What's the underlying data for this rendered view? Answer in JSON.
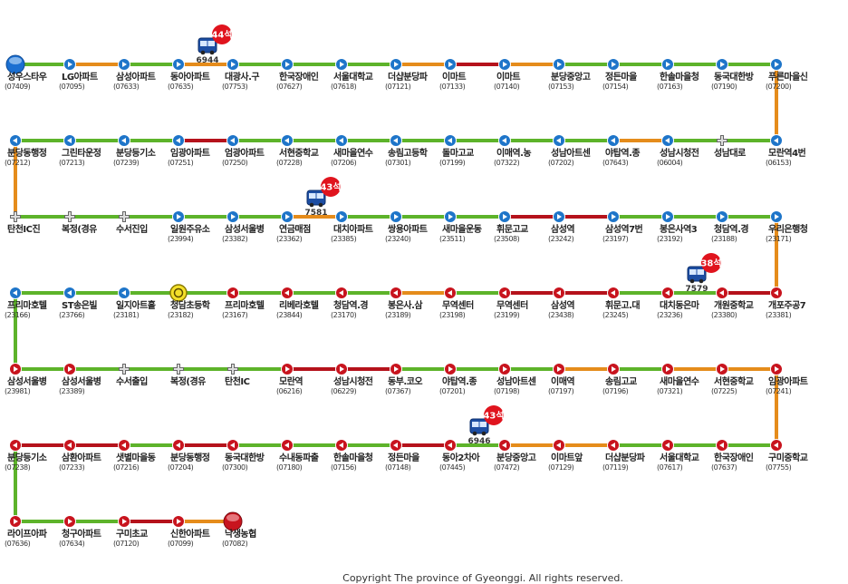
{
  "colors": {
    "green": "#5db32a",
    "orange": "#e58c1b",
    "red": "#b5121b",
    "blue_stop": "#1e75c9",
    "red_stop": "#c8141e",
    "start_stop": "#1b6fd1",
    "end_stop": "#c8141e"
  },
  "rows": [
    {
      "dir": "right",
      "stops": [
        {
          "name": "성우스타우",
          "id": "(07409)",
          "type": "start"
        },
        {
          "name": "LG아파트",
          "id": "(07095)",
          "type": "blue"
        },
        {
          "name": "삼성아파트",
          "id": "(07633)",
          "type": "blue"
        },
        {
          "name": "동아아파트",
          "id": "(07635)",
          "type": "blue"
        },
        {
          "name": "대광사.구",
          "id": "(07753)",
          "type": "blue"
        },
        {
          "name": "한국장애인",
          "id": "(07627)",
          "type": "blue"
        },
        {
          "name": "서울대학교",
          "id": "(07618)",
          "type": "blue"
        },
        {
          "name": "더샵분당파",
          "id": "(07121)",
          "type": "blue"
        },
        {
          "name": "이마트",
          "id": "(07133)",
          "type": "blue"
        },
        {
          "name": "이마트",
          "id": "(07140)",
          "type": "blue"
        },
        {
          "name": "분당중앙고",
          "id": "(07153)",
          "type": "blue"
        },
        {
          "name": "정든마을",
          "id": "(07154)",
          "type": "blue"
        },
        {
          "name": "한솔마을청",
          "id": "(07163)",
          "type": "blue"
        },
        {
          "name": "동국대한방",
          "id": "(07190)",
          "type": "blue"
        },
        {
          "name": "푸른마을신",
          "id": "(07200)",
          "type": "blue"
        }
      ],
      "segs": [
        "green",
        "orange",
        "green",
        "orange",
        "green",
        "green",
        "green",
        "orange",
        "red",
        "orange",
        "green",
        "green",
        "green",
        "green"
      ]
    },
    {
      "dir": "left",
      "stops": [
        {
          "name": "모란역4번",
          "id": "(06153)",
          "type": "blue"
        },
        {
          "name": "성남대로",
          "id": "",
          "type": "gray"
        },
        {
          "name": "성남시청전",
          "id": "(06004)",
          "type": "blue"
        },
        {
          "name": "야탑역.종",
          "id": "(07643)",
          "type": "blue"
        },
        {
          "name": "성남아트센",
          "id": "(07202)",
          "type": "blue"
        },
        {
          "name": "이매역.농",
          "id": "(07322)",
          "type": "blue"
        },
        {
          "name": "돌마고교",
          "id": "(07199)",
          "type": "blue"
        },
        {
          "name": "송림고등학",
          "id": "(07301)",
          "type": "blue"
        },
        {
          "name": "새마을연수",
          "id": "(07206)",
          "type": "blue"
        },
        {
          "name": "서현중학교",
          "id": "(07228)",
          "type": "blue"
        },
        {
          "name": "엄광아파트",
          "id": "(07250)",
          "type": "blue"
        },
        {
          "name": "임광아파트",
          "id": "(07251)",
          "type": "blue"
        },
        {
          "name": "분당등기소",
          "id": "(07239)",
          "type": "blue"
        },
        {
          "name": "그린타운정",
          "id": "(07213)",
          "type": "blue"
        },
        {
          "name": "분당동행정",
          "id": "(07212)",
          "type": "blue"
        }
      ],
      "segs": [
        "green",
        "green",
        "orange",
        "green",
        "green",
        "green",
        "green",
        "green",
        "green",
        "green",
        "red",
        "green",
        "green",
        "green"
      ]
    },
    {
      "dir": "right",
      "stops": [
        {
          "name": "탄천IC진",
          "id": "",
          "type": "gray"
        },
        {
          "name": "복정(경유",
          "id": "",
          "type": "gray"
        },
        {
          "name": "수서진입",
          "id": "",
          "type": "gray"
        },
        {
          "name": "일원주유소",
          "id": "(23994)",
          "type": "blue"
        },
        {
          "name": "삼성서울병",
          "id": "(23382)",
          "type": "blue"
        },
        {
          "name": "연금매점",
          "id": "(23362)",
          "type": "blue"
        },
        {
          "name": "대치아파트",
          "id": "(23385)",
          "type": "blue"
        },
        {
          "name": "쌍용아파트",
          "id": "(23240)",
          "type": "blue"
        },
        {
          "name": "새마을운동",
          "id": "(23511)",
          "type": "blue"
        },
        {
          "name": "휘문고교",
          "id": "(23508)",
          "type": "blue"
        },
        {
          "name": "삼성역",
          "id": "(23242)",
          "type": "blue"
        },
        {
          "name": "삼성역7번",
          "id": "(23197)",
          "type": "blue"
        },
        {
          "name": "봉은사역3",
          "id": "(23192)",
          "type": "blue"
        },
        {
          "name": "청담역.경",
          "id": "(23188)",
          "type": "blue"
        },
        {
          "name": "우리은행청",
          "id": "(23171)",
          "type": "blue"
        }
      ],
      "segs": [
        "green",
        "green",
        "green",
        "green",
        "green",
        "orange",
        "green",
        "green",
        "green",
        "red",
        "red",
        "green",
        "green",
        "green"
      ]
    },
    {
      "dir": "left",
      "stops": [
        {
          "name": "개포주공7",
          "id": "(23381)",
          "type": "red"
        },
        {
          "name": "개원중학교",
          "id": "(23380)",
          "type": "red"
        },
        {
          "name": "대치동은마",
          "id": "(23236)",
          "type": "red"
        },
        {
          "name": "휘문고.대",
          "id": "(23245)",
          "type": "red"
        },
        {
          "name": "삼성역",
          "id": "(23438)",
          "type": "red"
        },
        {
          "name": "무역센터",
          "id": "(23199)",
          "type": "red"
        },
        {
          "name": "무역센터",
          "id": "(23198)",
          "type": "red"
        },
        {
          "name": "봉은사.삼",
          "id": "(23189)",
          "type": "red"
        },
        {
          "name": "청담역.경",
          "id": "(23170)",
          "type": "red"
        },
        {
          "name": "리베라호텔",
          "id": "(23844)",
          "type": "red"
        },
        {
          "name": "프리마호텔",
          "id": "(23167)",
          "type": "red"
        },
        {
          "name": "청담초등학",
          "id": "(23182)",
          "type": "turn"
        },
        {
          "name": "일지아트홀",
          "id": "(23181)",
          "type": "blue"
        },
        {
          "name": "ST송은빌",
          "id": "(23766)",
          "type": "blue"
        },
        {
          "name": "프리마호텔",
          "id": "(23166)",
          "type": "blue"
        }
      ],
      "segs": [
        "red",
        "green",
        "green",
        "red",
        "red",
        "green",
        "orange",
        "green",
        "green",
        "green",
        "green",
        "green",
        "green",
        "green"
      ]
    },
    {
      "dir": "right",
      "stops": [
        {
          "name": "삼성서울병",
          "id": "(23981)",
          "type": "red"
        },
        {
          "name": "삼성서울병",
          "id": "(23389)",
          "type": "red"
        },
        {
          "name": "수서출입",
          "id": "",
          "type": "gray"
        },
        {
          "name": "복정(경유",
          "id": "",
          "type": "gray"
        },
        {
          "name": "탄천IC",
          "id": "",
          "type": "gray"
        },
        {
          "name": "모란역",
          "id": "(06216)",
          "type": "red"
        },
        {
          "name": "성남시청전",
          "id": "(06229)",
          "type": "red"
        },
        {
          "name": "동부.코오",
          "id": "(07367)",
          "type": "red"
        },
        {
          "name": "야탑역.종",
          "id": "(07201)",
          "type": "red"
        },
        {
          "name": "성남아트센",
          "id": "(07198)",
          "type": "red"
        },
        {
          "name": "이매역",
          "id": "(07197)",
          "type": "red"
        },
        {
          "name": "송림고교",
          "id": "(07196)",
          "type": "red"
        },
        {
          "name": "새마을연수",
          "id": "(07321)",
          "type": "red"
        },
        {
          "name": "서현중학교",
          "id": "(07225)",
          "type": "red"
        },
        {
          "name": "임광아파트",
          "id": "(07241)",
          "type": "red"
        }
      ],
      "segs": [
        "green",
        "green",
        "green",
        "green",
        "green",
        "red",
        "red",
        "green",
        "green",
        "green",
        "orange",
        "green",
        "orange",
        "orange"
      ]
    },
    {
      "dir": "left",
      "stops": [
        {
          "name": "구미중학교",
          "id": "(07755)",
          "type": "red"
        },
        {
          "name": "한국장애인",
          "id": "(07637)",
          "type": "red"
        },
        {
          "name": "서울대학교",
          "id": "(07617)",
          "type": "red"
        },
        {
          "name": "더샵분당파",
          "id": "(07119)",
          "type": "red"
        },
        {
          "name": "이마트앞",
          "id": "(07129)",
          "type": "red"
        },
        {
          "name": "분당중앙고",
          "id": "(07472)",
          "type": "red"
        },
        {
          "name": "동아2차아",
          "id": "(07445)",
          "type": "red"
        },
        {
          "name": "정든마을",
          "id": "(07148)",
          "type": "red"
        },
        {
          "name": "한솔마을청",
          "id": "(07156)",
          "type": "red"
        },
        {
          "name": "수내동파출",
          "id": "(07180)",
          "type": "red"
        },
        {
          "name": "동국대한방",
          "id": "(07300)",
          "type": "red"
        },
        {
          "name": "분당동행정",
          "id": "(07204)",
          "type": "red"
        },
        {
          "name": "샛별마을동",
          "id": "(07216)",
          "type": "red"
        },
        {
          "name": "삼환아파트",
          "id": "(07233)",
          "type": "red"
        },
        {
          "name": "분당등기소",
          "id": "(07238)",
          "type": "red"
        }
      ],
      "segs": [
        "green",
        "green",
        "green",
        "orange",
        "orange",
        "green",
        "red",
        "green",
        "green",
        "green",
        "red",
        "green",
        "red",
        "red"
      ]
    },
    {
      "dir": "right",
      "stops": [
        {
          "name": "라이프아파",
          "id": "(07636)",
          "type": "red"
        },
        {
          "name": "청구아파트",
          "id": "(07634)",
          "type": "red"
        },
        {
          "name": "구미초교",
          "id": "(07120)",
          "type": "red"
        },
        {
          "name": "신한아파트",
          "id": "(07099)",
          "type": "red"
        },
        {
          "name": "낙생농협",
          "id": "(07082)",
          "type": "end"
        }
      ],
      "segs": [
        "green",
        "green",
        "red",
        "orange"
      ]
    }
  ],
  "turns": [
    "orange",
    "orange",
    "orange",
    "green",
    "orange",
    "green"
  ],
  "buses": [
    {
      "row": 0,
      "seg": 3,
      "plate": "6944",
      "seats": "44석"
    },
    {
      "row": 2,
      "seg": 5,
      "plate": "7581",
      "seats": "43석"
    },
    {
      "row": 3,
      "seg": 1,
      "plate": "7579",
      "seats": "38석"
    },
    {
      "row": 5,
      "seg": 5,
      "plate": "6946",
      "seats": "43석"
    }
  ],
  "footer": {
    "copyright": "Copyright The province of Gyeonggi. All rights reserved."
  }
}
